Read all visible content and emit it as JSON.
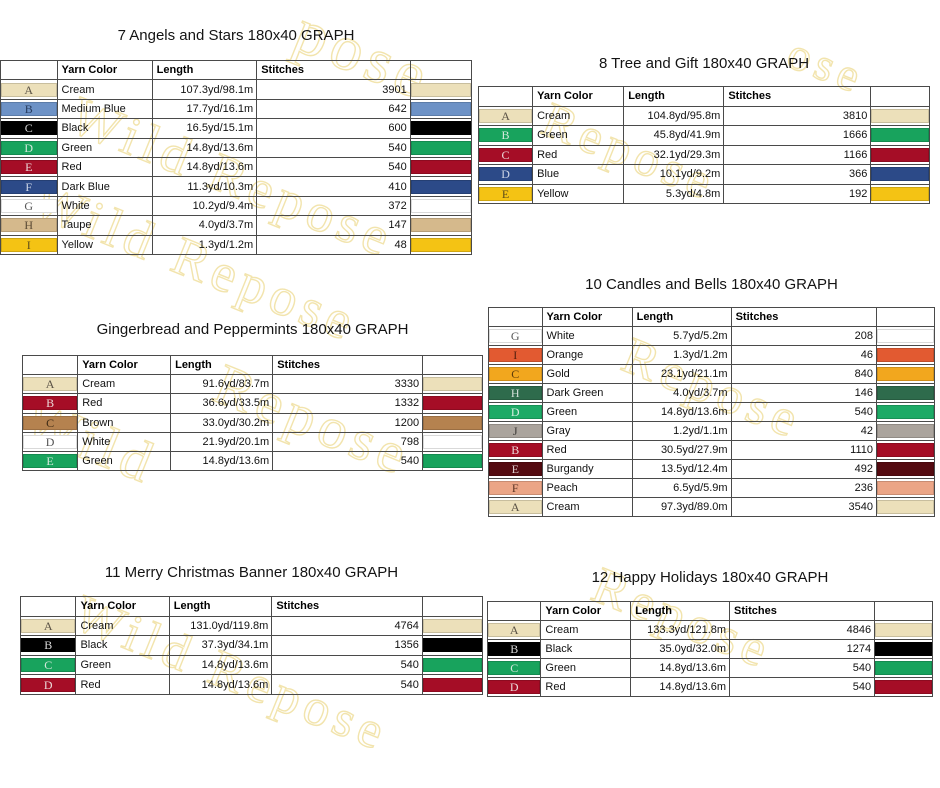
{
  "page": {
    "background": "#ffffff"
  },
  "watermark": {
    "stroke_color": "#f2e4ad",
    "fragments": [
      "pose",
      "ose",
      "Wild Repose",
      "Wild Repose",
      "Repose",
      "Repose",
      "Wild",
      "Repose",
      "Wild Repose",
      "Repose"
    ]
  },
  "tables": [
    {
      "title": "7 Angels and Stars 180x40 GRAPH",
      "headers": [
        "Yarn Color",
        "Length",
        "Stitches"
      ],
      "rows": [
        {
          "letter": "A",
          "name": "Cream",
          "length": "107.3yd/98.1m",
          "stitches": "3901",
          "swatch": "#ECE0BA",
          "fg": "#5a5245"
        },
        {
          "letter": "B",
          "name": "Medium Blue",
          "length": "17.7yd/16.1m",
          "stitches": "642",
          "swatch": "#6D92C6",
          "fg": "#263b5e"
        },
        {
          "letter": "C",
          "name": "Black",
          "length": "16.5yd/15.1m",
          "stitches": "600",
          "swatch": "#000000",
          "fg": "#d9d9d9"
        },
        {
          "letter": "D",
          "name": "Green",
          "length": "14.8yd/13.6m",
          "stitches": "540",
          "swatch": "#18A35D",
          "fg": "#d5e8dc"
        },
        {
          "letter": "E",
          "name": "Red",
          "length": "14.8yd/13.6m",
          "stitches": "540",
          "swatch": "#A50D26",
          "fg": "#eBd9d9"
        },
        {
          "letter": "F",
          "name": "Dark Blue",
          "length": "11.3yd/10.3m",
          "stitches": "410",
          "swatch": "#2C4A88",
          "fg": "#cdd5e6"
        },
        {
          "letter": "G",
          "name": "White",
          "length": "10.2yd/9.4m",
          "stitches": "372",
          "swatch": "#FFFFFF",
          "fg": "#555555"
        },
        {
          "letter": "H",
          "name": "Taupe",
          "length": "4.0yd/3.7m",
          "stitches": "147",
          "swatch": "#D5B98C",
          "fg": "#5a4a35"
        },
        {
          "letter": "I",
          "name": "Yellow",
          "length": "1.3yd/1.2m",
          "stitches": "48",
          "swatch": "#F4C314",
          "fg": "#5e4d1a"
        }
      ]
    },
    {
      "title": "8 Tree and Gift 180x40 GRAPH",
      "headers": [
        "Yarn Color",
        "Length",
        "Stitches"
      ],
      "rows": [
        {
          "letter": "A",
          "name": "Cream",
          "length": "104.8yd/95.8m",
          "stitches": "3810",
          "swatch": "#ECE0BA",
          "fg": "#5a5245"
        },
        {
          "letter": "B",
          "name": "Green",
          "length": "45.8yd/41.9m",
          "stitches": "1666",
          "swatch": "#18A35D",
          "fg": "#d5e8dc"
        },
        {
          "letter": "C",
          "name": "Red",
          "length": "32.1yd/29.3m",
          "stitches": "1166",
          "swatch": "#A50D26",
          "fg": "#ebd9d9"
        },
        {
          "letter": "D",
          "name": "Blue",
          "length": "10.1yd/9.2m",
          "stitches": "366",
          "swatch": "#2C4A88",
          "fg": "#cdd5e6"
        },
        {
          "letter": "E",
          "name": "Yellow",
          "length": "5.3yd/4.8m",
          "stitches": "192",
          "swatch": "#F4C314",
          "fg": "#5e4d1a"
        }
      ]
    },
    {
      "title": "Gingerbread and Peppermints 180x40 GRAPH",
      "headers": [
        "Yarn Color",
        "Length",
        "Stitches"
      ],
      "rows": [
        {
          "letter": "A",
          "name": "Cream",
          "length": "91.6yd/83.7m",
          "stitches": "3330",
          "swatch": "#ECE0BA",
          "fg": "#5a5245"
        },
        {
          "letter": "B",
          "name": "Red",
          "length": "36.6yd/33.5m",
          "stitches": "1332",
          "swatch": "#A50D26",
          "fg": "#ebd9d9"
        },
        {
          "letter": "C",
          "name": "Brown",
          "length": "33.0yd/30.2m",
          "stitches": "1200",
          "swatch": "#B5824F",
          "fg": "#3f2b16"
        },
        {
          "letter": "D",
          "name": "White",
          "length": "21.9yd/20.1m",
          "stitches": "798",
          "swatch": "#FFFFFF",
          "fg": "#555555"
        },
        {
          "letter": "E",
          "name": "Green",
          "length": "14.8yd/13.6m",
          "stitches": "540",
          "swatch": "#18A35D",
          "fg": "#d5e8dc"
        }
      ]
    },
    {
      "title": "10 Candles and Bells 180x40 GRAPH",
      "headers": [
        "Yarn Color",
        "Length",
        "Stitches"
      ],
      "rows": [
        {
          "letter": "G",
          "name": "White",
          "length": "5.7yd/5.2m",
          "stitches": "208",
          "swatch": "#FFFFFF",
          "fg": "#555555"
        },
        {
          "letter": "I",
          "name": "Orange",
          "length": "1.3yd/1.2m",
          "stitches": "46",
          "swatch": "#E25A31",
          "fg": "#55200f"
        },
        {
          "letter": "C",
          "name": "Gold",
          "length": "23.1yd/21.1m",
          "stitches": "840",
          "swatch": "#F2A71E",
          "fg": "#5e3c0a"
        },
        {
          "letter": "H",
          "name": "Dark Green",
          "length": "4.0yd/3.7m",
          "stitches": "146",
          "swatch": "#2E6B4C",
          "fg": "#d2e0d8"
        },
        {
          "letter": "D",
          "name": "Green",
          "length": "14.8yd/13.6m",
          "stitches": "540",
          "swatch": "#1DAA66",
          "fg": "#d5ede0"
        },
        {
          "letter": "J",
          "name": "Gray",
          "length": "1.2yd/1.1m",
          "stitches": "42",
          "swatch": "#ABA49D",
          "fg": "#3d3a37"
        },
        {
          "letter": "B",
          "name": "Red",
          "length": "30.5yd/27.9m",
          "stitches": "1110",
          "swatch": "#A50D26",
          "fg": "#ebd9d9"
        },
        {
          "letter": "E",
          "name": "Burgandy",
          "length": "13.5yd/12.4m",
          "stitches": "492",
          "swatch": "#540A10",
          "fg": "#dcc9c9"
        },
        {
          "letter": "F",
          "name": "Peach",
          "length": "6.5yd/5.9m",
          "stitches": "236",
          "swatch": "#EBA586",
          "fg": "#5c3424"
        },
        {
          "letter": "A",
          "name": "Cream",
          "length": "97.3yd/89.0m",
          "stitches": "3540",
          "swatch": "#ECE0BA",
          "fg": "#5a5245"
        }
      ]
    },
    {
      "title": "11 Merry Christmas Banner 180x40 GRAPH",
      "headers": [
        "Yarn Color",
        "Length",
        "Stitches"
      ],
      "rows": [
        {
          "letter": "A",
          "name": "Cream",
          "length": "131.0yd/119.8m",
          "stitches": "4764",
          "swatch": "#ECE0BA",
          "fg": "#5a5245"
        },
        {
          "letter": "B",
          "name": "Black",
          "length": "37.3yd/34.1m",
          "stitches": "1356",
          "swatch": "#000000",
          "fg": "#d9d9d9"
        },
        {
          "letter": "C",
          "name": "Green",
          "length": "14.8yd/13.6m",
          "stitches": "540",
          "swatch": "#18A35D",
          "fg": "#d5e8dc"
        },
        {
          "letter": "D",
          "name": "Red",
          "length": "14.8yd/13.6m",
          "stitches": "540",
          "swatch": "#A50D26",
          "fg": "#ebd9d9"
        }
      ]
    },
    {
      "title": "12 Happy Holidays 180x40 GRAPH",
      "headers": [
        "Yarn Color",
        "Length",
        "Stitches"
      ],
      "rows": [
        {
          "letter": "A",
          "name": "Cream",
          "length": "133.3yd/121.8m",
          "stitches": "4846",
          "swatch": "#ECE0BA",
          "fg": "#5a5245"
        },
        {
          "letter": "B",
          "name": "Black",
          "length": "35.0yd/32.0m",
          "stitches": "1274",
          "swatch": "#000000",
          "fg": "#d9d9d9"
        },
        {
          "letter": "C",
          "name": "Green",
          "length": "14.8yd/13.6m",
          "stitches": "540",
          "swatch": "#18A35D",
          "fg": "#d5e8dc"
        },
        {
          "letter": "D",
          "name": "Red",
          "length": "14.8yd/13.6m",
          "stitches": "540",
          "swatch": "#A50D26",
          "fg": "#ebd9d9"
        }
      ]
    }
  ]
}
